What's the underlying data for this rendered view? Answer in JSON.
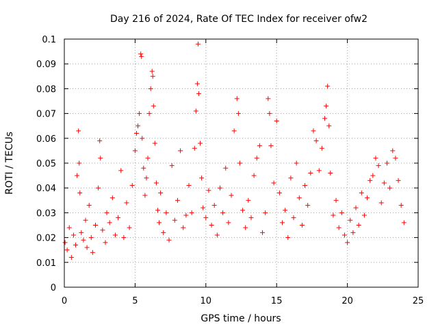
{
  "chart_data": {
    "type": "scatter",
    "title": "Day 216 of 2024, Rate Of TEC Index for receiver ofw2",
    "xlabel": "GPS time / hours",
    "ylabel": "ROTI / TECUs",
    "xlim": [
      0,
      25
    ],
    "ylim": [
      0,
      0.1
    ],
    "x_ticks": [
      0,
      5,
      10,
      15,
      20,
      25
    ],
    "y_ticks": [
      0,
      0.01,
      0.02,
      0.03,
      0.04,
      0.05,
      0.06,
      0.07,
      0.08,
      0.09,
      0.1
    ],
    "x_tick_labels": [
      "0",
      "5",
      "10",
      "15",
      "20",
      "25"
    ],
    "y_tick_labels": [
      "0",
      "0.01",
      "0.02",
      "0.03",
      "0.04",
      "0.05",
      "0.06",
      "0.07",
      "0.08",
      "0.09",
      "0.1"
    ],
    "grid": true,
    "marker": "plus",
    "marker_color": "#ff0000",
    "series": [
      {
        "x": [
          0.05,
          0.2,
          0.35,
          0.5,
          0.65,
          0.8,
          0.9,
          1.0,
          1.05,
          1.1,
          1.2,
          1.35,
          1.5,
          1.6,
          1.75,
          1.9,
          2.0,
          2.2,
          2.4,
          2.5,
          2.55,
          2.7,
          2.9,
          3.0,
          3.2,
          3.4,
          3.6,
          3.8,
          4.0,
          4.2,
          4.4,
          4.6,
          4.8,
          5.0,
          5.1,
          5.2,
          5.3,
          5.4,
          5.45,
          5.5,
          5.6,
          5.7,
          5.8,
          5.9,
          6.0,
          6.1,
          6.2,
          6.25,
          6.3,
          6.4,
          6.5,
          6.6,
          6.7,
          6.8,
          7.0,
          7.2,
          7.4,
          7.6,
          7.8,
          8.0,
          8.2,
          8.4,
          8.6,
          8.8,
          9.0,
          9.2,
          9.3,
          9.4,
          9.45,
          9.5,
          9.6,
          9.7,
          9.8,
          10.0,
          10.2,
          10.4,
          10.6,
          10.8,
          11.0,
          11.2,
          11.4,
          11.6,
          11.8,
          12.0,
          12.2,
          12.3,
          12.4,
          12.6,
          12.8,
          13.0,
          13.2,
          13.4,
          13.6,
          13.8,
          14.0,
          14.2,
          14.4,
          14.5,
          14.6,
          14.8,
          15.0,
          15.2,
          15.4,
          15.6,
          15.8,
          16.0,
          16.2,
          16.4,
          16.6,
          16.8,
          17.0,
          17.2,
          17.4,
          17.6,
          17.8,
          18.0,
          18.2,
          18.4,
          18.5,
          18.6,
          18.7,
          18.8,
          19.0,
          19.2,
          19.4,
          19.6,
          19.8,
          20.0,
          20.2,
          20.4,
          20.6,
          20.8,
          21.0,
          21.2,
          21.4,
          21.6,
          21.8,
          22.0,
          22.2,
          22.4,
          22.6,
          22.8,
          23.0,
          23.2,
          23.4,
          23.6,
          23.8,
          24.0
        ],
        "y": [
          0.018,
          0.015,
          0.024,
          0.012,
          0.021,
          0.017,
          0.045,
          0.063,
          0.05,
          0.038,
          0.022,
          0.019,
          0.027,
          0.016,
          0.033,
          0.02,
          0.014,
          0.025,
          0.04,
          0.059,
          0.052,
          0.023,
          0.018,
          0.03,
          0.026,
          0.036,
          0.021,
          0.028,
          0.047,
          0.02,
          0.034,
          0.024,
          0.041,
          0.055,
          0.062,
          0.065,
          0.07,
          0.094,
          0.093,
          0.06,
          0.048,
          0.037,
          0.044,
          0.052,
          0.07,
          0.08,
          0.087,
          0.085,
          0.073,
          0.058,
          0.042,
          0.031,
          0.026,
          0.038,
          0.022,
          0.03,
          0.019,
          0.049,
          0.027,
          0.035,
          0.055,
          0.024,
          0.029,
          0.041,
          0.03,
          0.056,
          0.071,
          0.082,
          0.098,
          0.078,
          0.058,
          0.044,
          0.032,
          0.028,
          0.039,
          0.025,
          0.033,
          0.021,
          0.04,
          0.03,
          0.048,
          0.026,
          0.037,
          0.063,
          0.076,
          0.07,
          0.05,
          0.031,
          0.024,
          0.035,
          0.028,
          0.045,
          0.052,
          0.057,
          0.022,
          0.03,
          0.076,
          0.07,
          0.057,
          0.042,
          0.067,
          0.038,
          0.026,
          0.031,
          0.02,
          0.044,
          0.028,
          0.05,
          0.036,
          0.025,
          0.041,
          0.033,
          0.046,
          0.063,
          0.059,
          0.047,
          0.056,
          0.068,
          0.073,
          0.081,
          0.065,
          0.046,
          0.029,
          0.035,
          0.024,
          0.03,
          0.021,
          0.018,
          0.027,
          0.022,
          0.032,
          0.025,
          0.038,
          0.029,
          0.036,
          0.043,
          0.045,
          0.052,
          0.049,
          0.034,
          0.042,
          0.05,
          0.04,
          0.055,
          0.052,
          0.043,
          0.033,
          0.026
        ]
      }
    ]
  }
}
